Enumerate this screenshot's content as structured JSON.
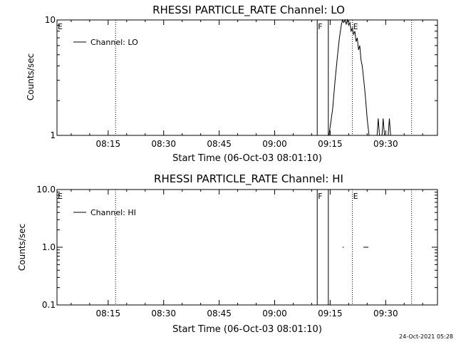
{
  "footer": {
    "timestamp": "24-Oct-2021 05:28"
  },
  "chart_data": [
    {
      "type": "line",
      "title": "RHESSI PARTICLE_RATE Channel: LO",
      "xlabel": "Start Time (06-Oct-03 08:01:10)",
      "ylabel": "Counts/sec",
      "y_scale": "log",
      "ylim": [
        1,
        10
      ],
      "y_ticks": [
        {
          "value": 1,
          "label": "1"
        },
        {
          "value": 10,
          "label": "10"
        }
      ],
      "xlim": [
        "08:01:10",
        "09:44:00"
      ],
      "x_ticks": [
        {
          "value": "08:15",
          "label": "08:15"
        },
        {
          "value": "08:30",
          "label": "08:30"
        },
        {
          "value": "08:45",
          "label": "08:45"
        },
        {
          "value": "09:00",
          "label": "09:00"
        },
        {
          "value": "09:15",
          "label": "09:15"
        },
        {
          "value": "09:30",
          "label": "09:30"
        }
      ],
      "legend": {
        "location": "top-left",
        "entries": [
          "Channel: LO"
        ]
      },
      "flags": [
        {
          "time": "08:01:10",
          "label": "E",
          "style": "none"
        },
        {
          "time": "08:17:00",
          "label": "",
          "style": "dotted"
        },
        {
          "time": "09:11:30",
          "label": "F",
          "style": "solid"
        },
        {
          "time": "09:14:30",
          "label": "",
          "style": "solid"
        },
        {
          "time": "09:21:00",
          "label": "E",
          "style": "dotted"
        },
        {
          "time": "09:37:00",
          "label": "",
          "style": "dotted"
        }
      ],
      "series": [
        {
          "name": "Channel: LO",
          "segments": [
            [
              [
                "09:14:40",
                1.0
              ],
              [
                "09:15:40",
                1.7
              ],
              [
                "09:16:20",
                3.0
              ],
              [
                "09:17:00",
                5.0
              ],
              [
                "09:17:30",
                7.0
              ],
              [
                "09:18:00",
                9.0
              ],
              [
                "09:18:20",
                10.0
              ],
              [
                "09:18:40",
                9.5
              ],
              [
                "09:19:00",
                10.0
              ],
              [
                "09:19:20",
                9.2
              ],
              [
                "09:19:40",
                10.0
              ],
              [
                "09:20:00",
                9.0
              ],
              [
                "09:20:20",
                9.5
              ],
              [
                "09:20:40",
                8.0
              ],
              [
                "09:21:00",
                8.5
              ],
              [
                "09:21:20",
                7.5
              ],
              [
                "09:21:40",
                8.0
              ],
              [
                "09:22:00",
                6.5
              ],
              [
                "09:22:20",
                7.0
              ],
              [
                "09:22:40",
                5.5
              ],
              [
                "09:23:00",
                6.0
              ],
              [
                "09:23:20",
                4.5
              ],
              [
                "09:23:40",
                4.0
              ],
              [
                "09:24:00",
                3.2
              ],
              [
                "09:24:20",
                2.5
              ],
              [
                "09:24:40",
                1.9
              ],
              [
                "09:25:00",
                1.4
              ],
              [
                "09:25:30",
                1.0
              ]
            ],
            [
              [
                "09:27:40",
                1.0
              ],
              [
                "09:28:00",
                1.4
              ],
              [
                "09:28:20",
                1.0
              ],
              [
                "09:29:00",
                1.0
              ],
              [
                "09:29:20",
                1.4
              ],
              [
                "09:29:40",
                1.0
              ]
            ],
            [
              [
                "09:30:40",
                1.0
              ],
              [
                "09:31:00",
                1.4
              ],
              [
                "09:31:20",
                1.0
              ]
            ]
          ]
        }
      ]
    },
    {
      "type": "line",
      "title": "RHESSI PARTICLE_RATE Channel: HI",
      "xlabel": "Start Time (06-Oct-03 08:01:10)",
      "ylabel": "Counts/sec",
      "y_scale": "log",
      "ylim": [
        0.1,
        10
      ],
      "y_ticks": [
        {
          "value": 0.1,
          "label": "0.1"
        },
        {
          "value": 1,
          "label": "1.0"
        },
        {
          "value": 10,
          "label": "10.0"
        }
      ],
      "xlim": [
        "08:01:10",
        "09:44:00"
      ],
      "x_ticks": [
        {
          "value": "08:15",
          "label": "08:15"
        },
        {
          "value": "08:30",
          "label": "08:30"
        },
        {
          "value": "08:45",
          "label": "08:45"
        },
        {
          "value": "09:00",
          "label": "09:00"
        },
        {
          "value": "09:15",
          "label": "09:15"
        },
        {
          "value": "09:30",
          "label": "09:30"
        }
      ],
      "legend": {
        "location": "top-left",
        "entries": [
          "Channel: HI"
        ]
      },
      "flags": [
        {
          "time": "08:01:10",
          "label": "E",
          "style": "none"
        },
        {
          "time": "08:17:00",
          "label": "",
          "style": "dotted"
        },
        {
          "time": "09:11:30",
          "label": "F",
          "style": "solid"
        },
        {
          "time": "09:14:30",
          "label": "",
          "style": "solid"
        },
        {
          "time": "09:21:00",
          "label": "E",
          "style": "dotted"
        },
        {
          "time": "09:37:00",
          "label": "",
          "style": "dotted"
        }
      ],
      "series": [
        {
          "name": "Channel: HI",
          "segments": [
            [
              [
                "09:18:20",
                1.0
              ],
              [
                "09:18:40",
                1.0
              ]
            ],
            [
              [
                "09:24:00",
                1.0
              ],
              [
                "09:25:20",
                1.0
              ]
            ]
          ]
        }
      ]
    }
  ]
}
